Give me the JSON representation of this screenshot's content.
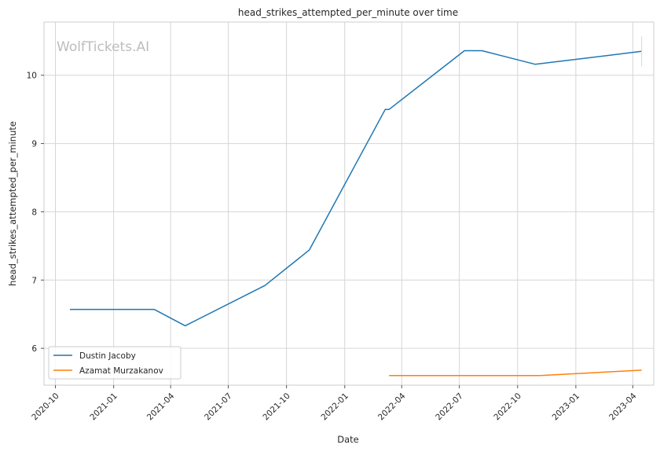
{
  "watermark": "WolfTickets.AI",
  "colors": {
    "series_1": "#1f77b4",
    "series_2": "#ff7f0e"
  },
  "chart_data": {
    "type": "line",
    "title": "head_strikes_attempted_per_minute over time",
    "xlabel": "Date",
    "ylabel": "head_strikes_attempted_per_minute",
    "x_ticks": [
      "2020-10",
      "2021-01",
      "2021-04",
      "2021-07",
      "2021-10",
      "2022-01",
      "2022-04",
      "2022-07",
      "2022-10",
      "2023-01",
      "2023-04"
    ],
    "y_ticks": [
      6,
      7,
      8,
      9,
      10
    ],
    "xlim": [
      "2020-09-13",
      "2023-05-04"
    ],
    "ylim": [
      5.46,
      10.78
    ],
    "grid": true,
    "legend_position": "lower-left",
    "series": [
      {
        "name": "Dustin Jacoby",
        "points": [
          [
            "2020-10-24",
            6.57
          ],
          [
            "2021-03-06",
            6.57
          ],
          [
            "2021-04-24",
            6.33
          ],
          [
            "2021-08-28",
            6.92
          ],
          [
            "2021-11-06",
            7.44
          ],
          [
            "2022-03-06",
            9.5
          ],
          [
            "2022-03-12",
            9.5
          ],
          [
            "2022-07-09",
            10.36
          ],
          [
            "2022-08-06",
            10.36
          ],
          [
            "2022-10-29",
            10.16
          ],
          [
            "2023-04-15",
            10.35
          ]
        ]
      },
      {
        "name": "Azamat Murzakanov",
        "points": [
          [
            "2022-03-12",
            5.6
          ],
          [
            "2022-11-05",
            5.6
          ],
          [
            "2023-04-15",
            5.68
          ]
        ]
      }
    ]
  }
}
